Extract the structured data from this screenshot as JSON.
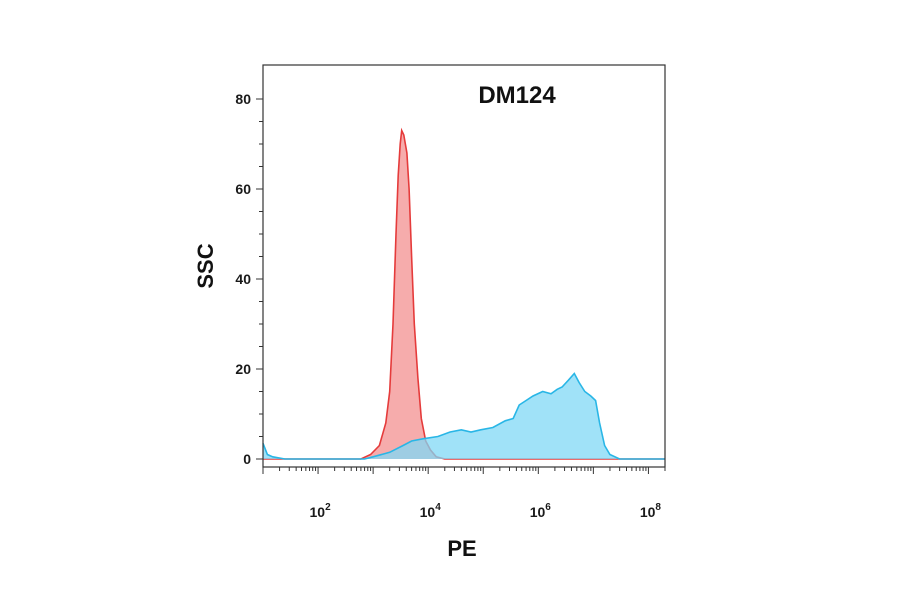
{
  "chart_data": {
    "type": "area",
    "title": "DM124",
    "xlabel": "PE",
    "ylabel": "SSC",
    "x_scale": "log10",
    "xlim": [
      10,
      200000000
    ],
    "ylim": [
      0,
      88
    ],
    "y_ticks": [
      {
        "value": 0,
        "label": "0"
      },
      {
        "value": 20,
        "label": "20"
      },
      {
        "value": 40,
        "label": "40"
      },
      {
        "value": 60,
        "label": "60"
      },
      {
        "value": 80,
        "label": "80"
      }
    ],
    "x_ticks": [
      {
        "value": 100,
        "base": "10",
        "exp": "2"
      },
      {
        "value": 10000,
        "base": "10",
        "exp": "4"
      },
      {
        "value": 1000000,
        "base": "10",
        "exp": "6"
      },
      {
        "value": 100000000,
        "base": "10",
        "exp": "8"
      }
    ],
    "grid": false,
    "legend": "none",
    "series": [
      {
        "color": "#e53b3b",
        "fill": "#f5a3a3",
        "points": [
          [
            10,
            0
          ],
          [
            600,
            0
          ],
          [
            900,
            1
          ],
          [
            1300,
            3
          ],
          [
            1700,
            8
          ],
          [
            2000,
            15
          ],
          [
            2300,
            30
          ],
          [
            2600,
            50
          ],
          [
            2850,
            63
          ],
          [
            3100,
            70
          ],
          [
            3300,
            73
          ],
          [
            3600,
            72
          ],
          [
            4100,
            68
          ],
          [
            4500,
            60
          ],
          [
            5000,
            45
          ],
          [
            5600,
            30
          ],
          [
            6500,
            18
          ],
          [
            7500,
            9
          ],
          [
            9000,
            4
          ],
          [
            11000,
            2
          ],
          [
            14000,
            0.5
          ],
          [
            20000,
            0
          ],
          [
            200000000,
            0
          ]
        ]
      },
      {
        "color": "#29b6e6",
        "fill": "#80d8f6",
        "points": [
          [
            10,
            3.5
          ],
          [
            12,
            1
          ],
          [
            15,
            0.5
          ],
          [
            25,
            0
          ],
          [
            700,
            0
          ],
          [
            1000,
            0.5
          ],
          [
            2000,
            1.5
          ],
          [
            3500,
            3
          ],
          [
            5000,
            4
          ],
          [
            8000,
            4.5
          ],
          [
            15000,
            5
          ],
          [
            25000,
            6
          ],
          [
            40000,
            6.5
          ],
          [
            60000,
            6
          ],
          [
            90000,
            6.5
          ],
          [
            150000,
            7
          ],
          [
            250000,
            8.5
          ],
          [
            350000,
            9
          ],
          [
            450000,
            12
          ],
          [
            600000,
            13
          ],
          [
            800000,
            14
          ],
          [
            1200000,
            15
          ],
          [
            1700000,
            14.5
          ],
          [
            2200000,
            15.5
          ],
          [
            2700000,
            16
          ],
          [
            3500000,
            17.5
          ],
          [
            4500000,
            19
          ],
          [
            5500000,
            17
          ],
          [
            7000000,
            15
          ],
          [
            9000000,
            14
          ],
          [
            11000000,
            13
          ],
          [
            13000000,
            8
          ],
          [
            16000000,
            3
          ],
          [
            20000000,
            1
          ],
          [
            30000000,
            0
          ],
          [
            200000000,
            0
          ]
        ]
      }
    ]
  }
}
